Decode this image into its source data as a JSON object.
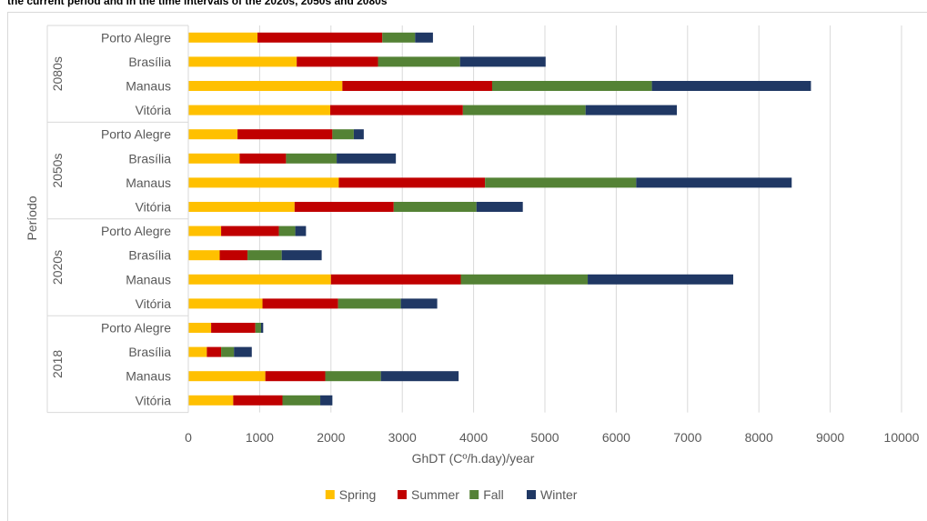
{
  "title": "the current period and in the time intervals of the 2020s, 2050s and 2080s",
  "chart_data": {
    "type": "bar",
    "orientation": "horizontal",
    "stacked": true,
    "title": "the current period and in the time intervals of the 2020s, 2050s and 2080s",
    "xlabel": "GhDT (Cº/h.day)/year",
    "ylabel": "Período",
    "xlim": [
      0,
      10000
    ],
    "xticks": [
      0,
      1000,
      2000,
      3000,
      4000,
      5000,
      6000,
      7000,
      8000,
      9000,
      10000
    ],
    "grid": true,
    "legend_position": "bottom",
    "groups": [
      {
        "label": "2080s",
        "categories": [
          "Porto Alegre",
          "Brasília",
          "Manaus",
          "Vitória"
        ]
      },
      {
        "label": "2050s",
        "categories": [
          "Porto Alegre",
          "Brasília",
          "Manaus",
          "Vitória"
        ]
      },
      {
        "label": "2020s",
        "categories": [
          "Porto Alegre",
          "Brasília",
          "Manaus",
          "Vitória"
        ]
      },
      {
        "label": "2018",
        "categories": [
          "Porto Alegre",
          "Brasília",
          "Manaus",
          "Vitória"
        ]
      }
    ],
    "series": [
      {
        "name": "Spring",
        "color": "#FFC000",
        "values": [
          970,
          1520,
          2160,
          1990,
          690,
          720,
          2110,
          1490,
          460,
          440,
          2000,
          1040,
          320,
          260,
          1080,
          630
        ]
      },
      {
        "name": "Summer",
        "color": "#C00000",
        "values": [
          1750,
          1140,
          2100,
          1860,
          1330,
          650,
          2050,
          1390,
          810,
          390,
          1820,
          1060,
          620,
          200,
          840,
          690
        ]
      },
      {
        "name": "Fall",
        "color": "#548235",
        "values": [
          460,
          1150,
          2240,
          1720,
          300,
          710,
          2120,
          1160,
          230,
          480,
          1780,
          880,
          80,
          180,
          780,
          530
        ]
      },
      {
        "name": "Winter",
        "color": "#203864",
        "values": [
          250,
          1200,
          2230,
          1280,
          140,
          830,
          2180,
          650,
          150,
          560,
          2040,
          510,
          30,
          250,
          1090,
          170
        ]
      }
    ]
  }
}
